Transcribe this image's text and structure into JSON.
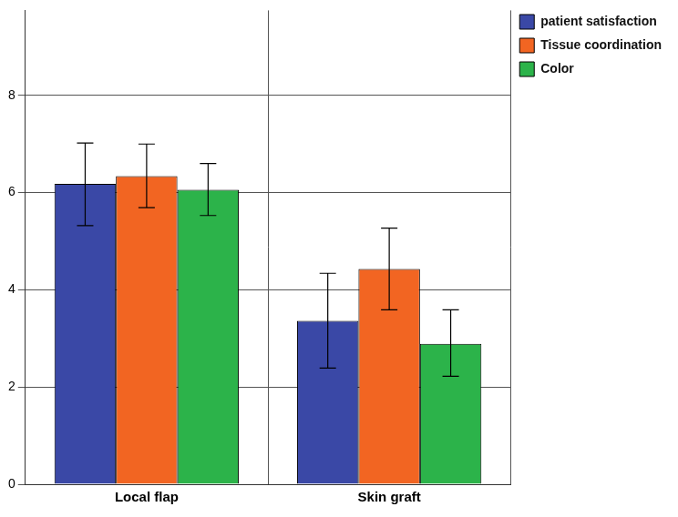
{
  "chart_data": {
    "type": "bar",
    "categories": [
      "Local flap",
      "Skin graft"
    ],
    "series": [
      {
        "name": "patient satisfaction",
        "color": "#3a48a6",
        "values": [
          6.18,
          3.36
        ],
        "error_low": [
          5.32,
          2.39
        ],
        "error_high": [
          7.02,
          4.34
        ]
      },
      {
        "name": "Tissue coordination",
        "color": "#f26522",
        "values": [
          6.34,
          4.43
        ],
        "error_low": [
          5.69,
          3.59
        ],
        "error_high": [
          7.0,
          5.27
        ]
      },
      {
        "name": "Color",
        "color": "#2cb34a",
        "values": [
          6.06,
          2.89
        ],
        "error_low": [
          5.53,
          2.22
        ],
        "error_high": [
          6.6,
          3.59
        ]
      }
    ],
    "ylim": [
      0,
      9.75
    ],
    "yticks": [
      0,
      2,
      4,
      6,
      8
    ],
    "grid": true,
    "legend": "right"
  }
}
